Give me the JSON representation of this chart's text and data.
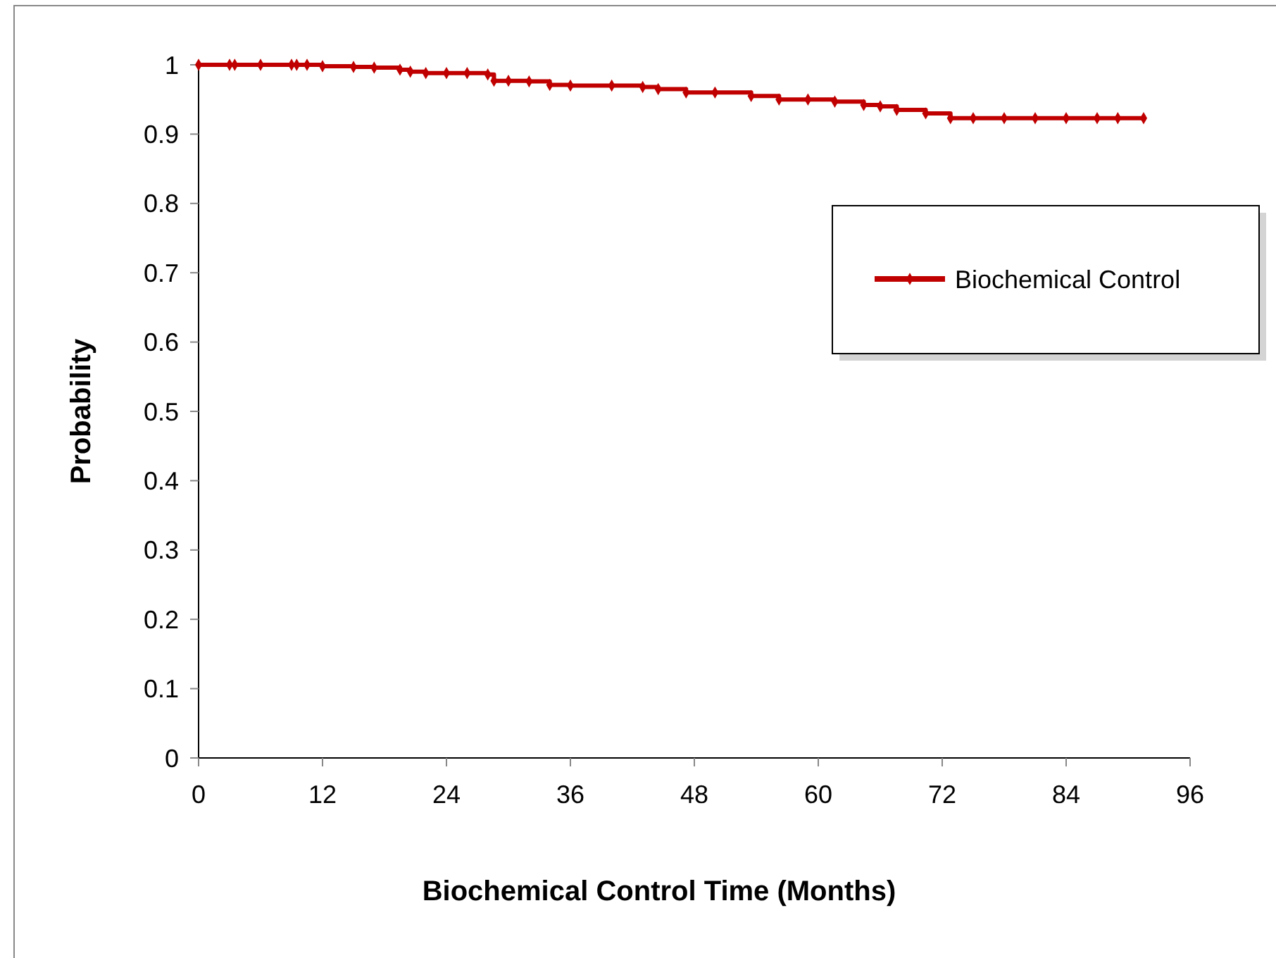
{
  "chart_data": {
    "type": "step",
    "xlabel": "Biochemical Control Time (Months)",
    "ylabel": "Probability",
    "xlim": [
      0,
      96
    ],
    "xticks": [
      0,
      12,
      24,
      36,
      48,
      60,
      72,
      84,
      96
    ],
    "ylim": [
      0,
      1
    ],
    "yticks": [
      0,
      0.1,
      0.2,
      0.3,
      0.4,
      0.5,
      0.6,
      0.7,
      0.8,
      0.9,
      1
    ],
    "grid": false,
    "legend": "right",
    "marker": "diamond",
    "line_style": "solid",
    "series": [
      {
        "name": "Biochemical Control",
        "color": "#c00000",
        "x": [
          0,
          3,
          3.5,
          6,
          9,
          9.5,
          10.5,
          12,
          15,
          17,
          19.5,
          20.5,
          22,
          24,
          26,
          28,
          28.6,
          30,
          32,
          34,
          36,
          40,
          43,
          44.5,
          47.2,
          50,
          53.5,
          56.2,
          59,
          61.6,
          64.4,
          66,
          67.6,
          70.4,
          72.8,
          75,
          78,
          81,
          84,
          87,
          89,
          91.5
        ],
        "values": [
          1,
          1,
          1,
          1,
          1,
          1,
          1,
          0.998,
          0.997,
          0.996,
          0.993,
          0.99,
          0.988,
          0.988,
          0.988,
          0.986,
          0.977,
          0.977,
          0.976,
          0.971,
          0.97,
          0.97,
          0.968,
          0.965,
          0.96,
          0.96,
          0.955,
          0.95,
          0.95,
          0.947,
          0.942,
          0.94,
          0.935,
          0.93,
          0.923,
          0.923,
          0.923,
          0.923,
          0.923,
          0.923,
          0.923,
          0.923
        ]
      }
    ]
  }
}
